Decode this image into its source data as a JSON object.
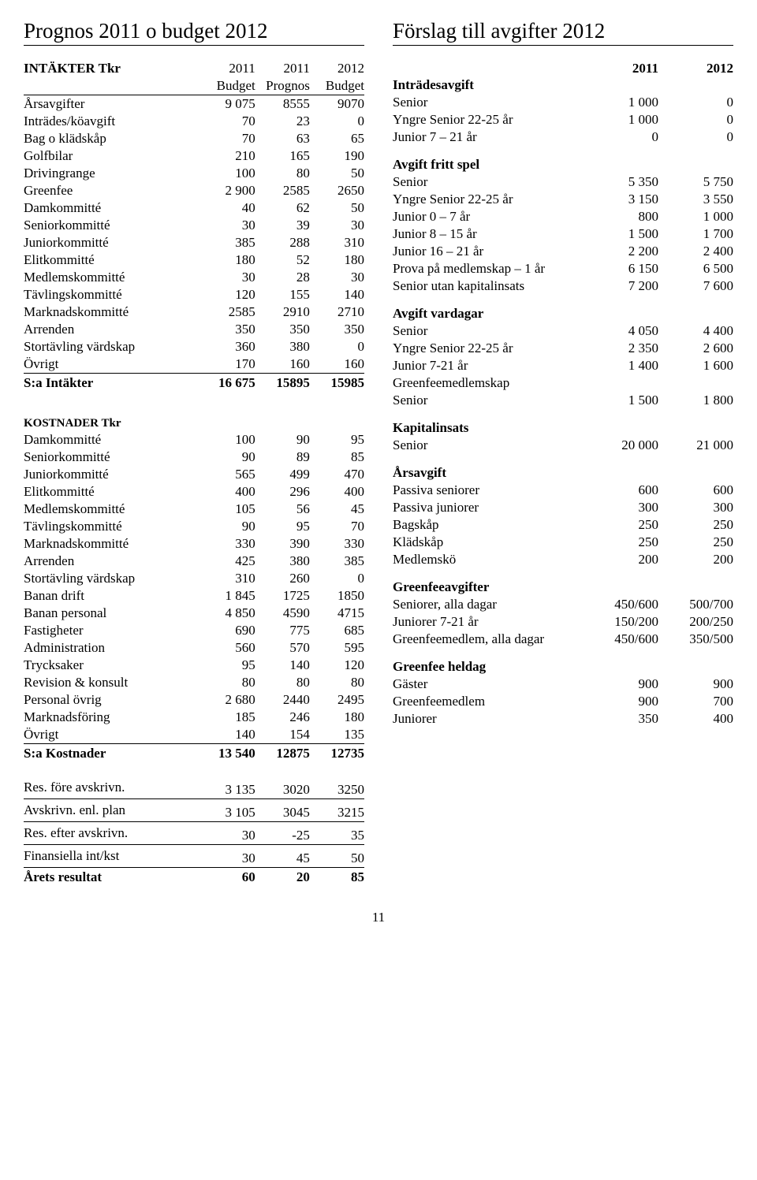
{
  "page_number": "11",
  "left": {
    "title": "Prognos 2011 o budget 2012",
    "headers": {
      "h0": "INTÄKTER Tkr",
      "h1a": "2011",
      "h1b": "Budget",
      "h2a": "2011",
      "h2b": "Prognos",
      "h3a": "2012",
      "h3b": "Budget"
    },
    "intakter": [
      {
        "l": "Årsavgifter",
        "a": "9 075",
        "b": "8555",
        "c": "9070"
      },
      {
        "l": "Inträdes/köavgift",
        "a": "70",
        "b": "23",
        "c": "0"
      },
      {
        "l": "Bag o klädskåp",
        "a": "70",
        "b": "63",
        "c": "65"
      },
      {
        "l": "Golfbilar",
        "a": "210",
        "b": "165",
        "c": "190"
      },
      {
        "l": "Drivingrange",
        "a": "100",
        "b": "80",
        "c": "50"
      },
      {
        "l": "Greenfee",
        "a": "2 900",
        "b": "2585",
        "c": "2650"
      },
      {
        "l": "Damkommitté",
        "a": "40",
        "b": "62",
        "c": "50"
      },
      {
        "l": "Seniorkommitté",
        "a": "30",
        "b": "39",
        "c": "30"
      },
      {
        "l": "Juniorkommitté",
        "a": "385",
        "b": "288",
        "c": "310"
      },
      {
        "l": "Elitkommitté",
        "a": "180",
        "b": "52",
        "c": "180"
      },
      {
        "l": "Medlemskommitté",
        "a": "30",
        "b": "28",
        "c": "30"
      },
      {
        "l": "Tävlingskommitté",
        "a": "120",
        "b": "155",
        "c": "140"
      },
      {
        "l": "Marknadskommitté",
        "a": "2585",
        "b": "2910",
        "c": "2710"
      },
      {
        "l": "Arrenden",
        "a": "350",
        "b": "350",
        "c": "350"
      },
      {
        "l": "Stortävling värdskap",
        "a": "360",
        "b": "380",
        "c": "0"
      },
      {
        "l": "Övrigt",
        "a": "170",
        "b": "160",
        "c": "160"
      }
    ],
    "intakter_sum": {
      "l": "S:a Intäkter",
      "a": "16 675",
      "b": "15895",
      "c": "15985"
    },
    "kostnader_title": "KOSTNADER Tkr",
    "kostnader": [
      {
        "l": "Damkommitté",
        "a": "100",
        "b": "90",
        "c": "95"
      },
      {
        "l": "Seniorkommitté",
        "a": "90",
        "b": "89",
        "c": "85"
      },
      {
        "l": "Juniorkommitté",
        "a": "565",
        "b": "499",
        "c": "470"
      },
      {
        "l": "Elitkommitté",
        "a": "400",
        "b": "296",
        "c": "400"
      },
      {
        "l": "Medlemskommitté",
        "a": "105",
        "b": "56",
        "c": "45"
      },
      {
        "l": "Tävlingskommitté",
        "a": "90",
        "b": "95",
        "c": "70"
      },
      {
        "l": "Marknadskommitté",
        "a": "330",
        "b": "390",
        "c": "330"
      },
      {
        "l": "Arrenden",
        "a": "425",
        "b": "380",
        "c": "385"
      },
      {
        "l": "Stortävling värdskap",
        "a": "310",
        "b": "260",
        "c": "0"
      },
      {
        "l": "Banan drift",
        "a": "1 845",
        "b": "1725",
        "c": "1850"
      },
      {
        "l": "Banan personal",
        "a": "4 850",
        "b": "4590",
        "c": "4715"
      },
      {
        "l": "Fastigheter",
        "a": "690",
        "b": "775",
        "c": "685"
      },
      {
        "l": "Administration",
        "a": "560",
        "b": "570",
        "c": "595"
      },
      {
        "l": "Trycksaker",
        "a": "95",
        "b": "140",
        "c": "120"
      },
      {
        "l": "Revision & konsult",
        "a": "80",
        "b": "80",
        "c": "80"
      },
      {
        "l": "Personal övrig",
        "a": "2 680",
        "b": "2440",
        "c": "2495"
      },
      {
        "l": "Marknadsföring",
        "a": "185",
        "b": "246",
        "c": "180"
      },
      {
        "l": "Övrigt",
        "a": "140",
        "b": "154",
        "c": "135"
      }
    ],
    "kostnader_sum": {
      "l": "S:a Kostnader",
      "a": "13 540",
      "b": "12875",
      "c": "12735"
    },
    "footer": [
      {
        "l": "Res. före avskrivn.",
        "a": "3 135",
        "b": "3020",
        "c": "3250"
      },
      {
        "l": "Avskrivn. enl. plan",
        "a": "3 105",
        "b": "3045",
        "c": "3215"
      },
      {
        "l": "Res. efter avskrivn.",
        "a": "30",
        "b": "-25",
        "c": "35"
      },
      {
        "l": "Finansiella int/kst",
        "a": "30",
        "b": "45",
        "c": "50"
      }
    ],
    "result": {
      "l": "Årets resultat",
      "a": "60",
      "b": "20",
      "c": "85"
    }
  },
  "right": {
    "title": "Förslag till avgifter 2012",
    "cols": {
      "a": "2011",
      "b": "2012"
    },
    "sections": [
      {
        "title": "Inträdesavgift",
        "rows": [
          {
            "l": "Senior",
            "a": "1 000",
            "b": "0"
          },
          {
            "l": "Yngre Senior 22-25 år",
            "a": "1 000",
            "b": "0"
          },
          {
            "l": "Junior 7 – 21 år",
            "a": "0",
            "b": "0"
          }
        ]
      },
      {
        "title": "Avgift fritt spel",
        "rows": [
          {
            "l": "Senior",
            "a": "5 350",
            "b": "5 750"
          },
          {
            "l": "Yngre Senior 22-25 år",
            "a": "3 150",
            "b": "3 550"
          },
          {
            "l": "Junior 0 – 7 år",
            "a": "800",
            "b": "1 000"
          },
          {
            "l": "Junior 8 – 15 år",
            "a": "1 500",
            "b": "1 700"
          },
          {
            "l": "Junior 16 – 21 år",
            "a": "2 200",
            "b": "2 400"
          },
          {
            "l": "Prova på medlemskap – 1 år",
            "a": "6 150",
            "b": "6 500"
          },
          {
            "l": "Senior utan kapitalinsats",
            "a": "7 200",
            "b": "7 600"
          }
        ]
      },
      {
        "title": "Avgift vardagar",
        "rows": [
          {
            "l": "Senior",
            "a": "4 050",
            "b": "4 400"
          },
          {
            "l": "Yngre Senior 22-25 år",
            "a": "2 350",
            "b": "2 600"
          },
          {
            "l": "Junior 7-21 år",
            "a": "1 400",
            "b": "1 600"
          },
          {
            "l": "Greenfeemedlemskap",
            "a": "",
            "b": ""
          },
          {
            "l": "Senior",
            "a": "1 500",
            "b": "1 800"
          }
        ]
      },
      {
        "title": "Kapitalinsats",
        "rows": [
          {
            "l": "Senior",
            "a": "20 000",
            "b": "21 000"
          }
        ]
      },
      {
        "title": "Årsavgift",
        "rows": [
          {
            "l": "Passiva seniorer",
            "a": "600",
            "b": "600"
          },
          {
            "l": "Passiva juniorer",
            "a": "300",
            "b": "300"
          },
          {
            "l": "Bagskåp",
            "a": "250",
            "b": "250"
          },
          {
            "l": "Klädskåp",
            "a": "250",
            "b": "250"
          },
          {
            "l": "Medlemskö",
            "a": "200",
            "b": "200"
          }
        ]
      },
      {
        "title": "Greenfeeavgifter",
        "rows": [
          {
            "l": "Seniorer, alla dagar",
            "a": "450/600",
            "b": "500/700"
          },
          {
            "l": "Juniorer 7-21 år",
            "a": "150/200",
            "b": "200/250"
          },
          {
            "l": "Greenfeemedlem, alla dagar",
            "a": "450/600",
            "b": "350/500"
          }
        ]
      },
      {
        "title": "Greenfee heldag",
        "rows": [
          {
            "l": "Gäster",
            "a": "900",
            "b": "900"
          },
          {
            "l": "Greenfeemedlem",
            "a": "900",
            "b": "700"
          },
          {
            "l": "Juniorer",
            "a": "350",
            "b": "400"
          }
        ]
      }
    ]
  }
}
